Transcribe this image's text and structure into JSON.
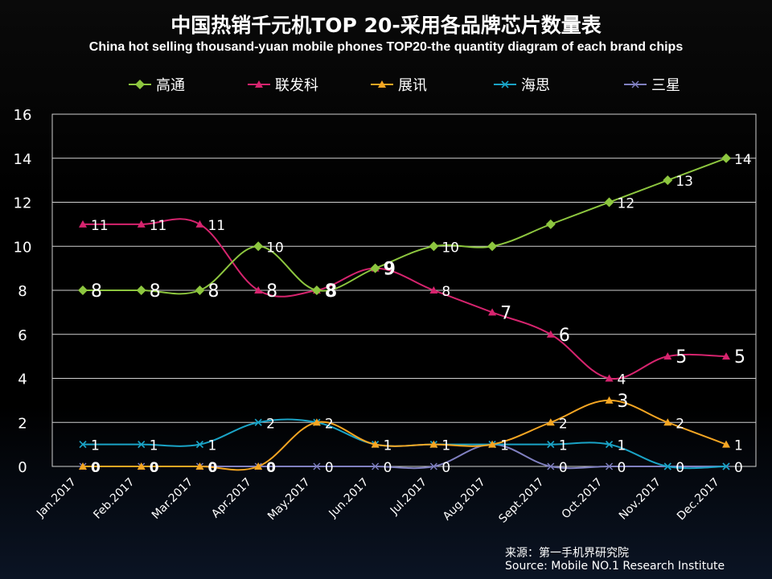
{
  "chart_data": {
    "type": "line",
    "title": "中国热销千元机TOP 20-采用各品牌芯片数量表",
    "subtitle": "China hot selling thousand-yuan mobile phones TOP20-the quantity diagram of each brand chips",
    "categories": [
      "Jan.2017",
      "Feb.2017",
      "Mar.2017",
      "Apr.2017",
      "May.2017",
      "Jun.2017",
      "Jul.2017",
      "Aug.2017",
      "Sept.2017",
      "Oct.2017",
      "Nov.2017",
      "Dec.2017"
    ],
    "ylim": [
      0,
      16
    ],
    "yticks": [
      "0",
      "2",
      "4",
      "6",
      "8",
      "10",
      "12",
      "14",
      "16"
    ],
    "grid": true,
    "legend_position": "top",
    "series": [
      {
        "name": "高通",
        "color": "#8DC63F",
        "marker": "diamond",
        "values": [
          8,
          8,
          8,
          10,
          8,
          9,
          10,
          10,
          11,
          12,
          13,
          14
        ],
        "labels": [
          "8",
          "8",
          "8",
          "10",
          "8",
          "9",
          "10",
          "",
          "",
          "12",
          "13",
          "14"
        ]
      },
      {
        "name": "联发科",
        "color": "#D6246E",
        "marker": "triangle",
        "values": [
          11,
          11,
          11,
          8,
          8,
          9,
          8,
          7,
          6,
          4,
          5,
          5
        ],
        "labels": [
          "11",
          "11",
          "11",
          "8",
          "8",
          "",
          "8",
          "7",
          "6",
          "4",
          "5",
          "5"
        ]
      },
      {
        "name": "展讯",
        "color": "#F5A623",
        "marker": "triangle",
        "values": [
          0,
          0,
          0,
          0,
          2,
          1,
          1,
          1,
          2,
          3,
          2,
          1
        ],
        "labels": [
          "0",
          "0",
          "0",
          "0",
          "2",
          "",
          "1",
          "",
          "2",
          "3",
          "2",
          "1"
        ]
      },
      {
        "name": "海思",
        "color": "#1AA3C6",
        "marker": "x",
        "values": [
          1,
          1,
          1,
          2,
          2,
          1,
          1,
          1,
          1,
          1,
          0,
          0
        ],
        "labels": [
          "1",
          "1",
          "1",
          "2",
          "",
          "1",
          "",
          "1",
          "1",
          "1",
          "",
          "0"
        ]
      },
      {
        "name": "三星",
        "color": "#8080C0",
        "marker": "star",
        "values": [
          0,
          0,
          0,
          0,
          0,
          0,
          0,
          1,
          0,
          0,
          0,
          0
        ],
        "labels": [
          "0",
          "0",
          "0",
          "",
          "0",
          "0",
          "0",
          "",
          "0",
          "0",
          "0",
          ""
        ]
      }
    ]
  },
  "source": {
    "cn": "来源：第一手机界研究院",
    "en": "Source: Mobile NO.1 Research Institute"
  }
}
